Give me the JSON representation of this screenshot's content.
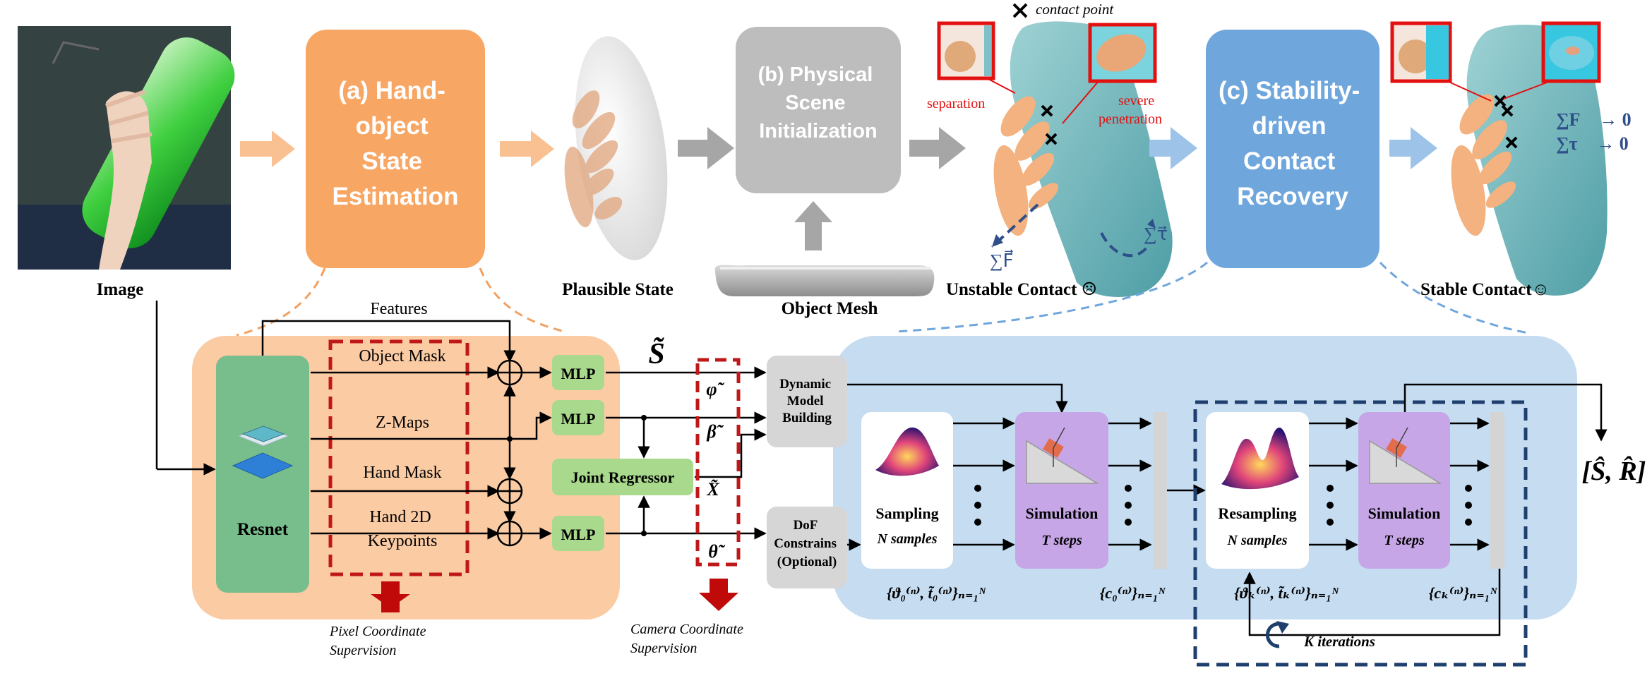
{
  "stage_a": {
    "title": "(a) Hand-object State Estimation",
    "lines": [
      "(a) Hand-",
      "object",
      "State",
      "Estimation"
    ]
  },
  "stage_b": {
    "title": "(b) Physical Scene Initialization",
    "lines": [
      "(b) Physical",
      "Scene",
      "Initialization"
    ]
  },
  "stage_c": {
    "title": "(c) Stability-driven Contact Recovery",
    "lines": [
      "(c) Stability-",
      "driven",
      "Contact",
      "Recovery"
    ]
  },
  "top_captions": {
    "image": "Image",
    "plausible_state": "Plausible State",
    "object_mesh": "Object Mesh",
    "unstable_contact": "Unstable Contact ☹",
    "stable_contact": "Stable Contact☺"
  },
  "annotations": {
    "contact_point": "contact point",
    "separation": "separation",
    "severe_penetration_1": "severe",
    "severe_penetration_2": "penetration",
    "force_sum": "∑F⃗",
    "torque_sum": "∑τ⃗",
    "stable_force": "∑F⃗ → 0",
    "stable_torque": "∑τ⃗ → 0"
  },
  "colors": {
    "orange_stage": "#f8a663",
    "orange_panel": "#fbcba4",
    "gray_stage": "#bdbdbd",
    "blue_stage": "#6fa6dc",
    "blue_panel": "#c6dcf1",
    "mlp_green": "#a8d98c",
    "resnet_green": "#78bd8c",
    "sim_purple": "#c6a6e6",
    "red_dash": "#c01818",
    "navy_dash": "#1f3f6e"
  },
  "panel_a": {
    "features": "Features",
    "object_mask": "Object Mask",
    "z_maps": "Z-Maps",
    "hand_mask": "Hand Mask",
    "hand_2d_keypoints_1": "Hand 2D",
    "hand_2d_keypoints_2": "Keypoints",
    "resnet": "Resnet",
    "mlp": "MLP",
    "joint_regressor": "Joint Regressor",
    "s_tilde": "S̃",
    "phi": "φ̃",
    "beta": "β̃",
    "x_tilde": "X̃",
    "theta": "θ̃",
    "pixel_supervision_1": "Pixel Coordinate",
    "pixel_supervision_2": "Supervision",
    "camera_supervision_1": "Camera Coordinate",
    "camera_supervision_2": "Supervision"
  },
  "middle": {
    "dynamic_1": "Dynamic",
    "dynamic_2": "Model",
    "dynamic_3": "Building",
    "dof_1": "DoF",
    "dof_2": "Constrains",
    "dof_3": "(Optional)"
  },
  "panel_c": {
    "sampling": "Sampling",
    "n_samples": "N samples",
    "simulation": "Simulation",
    "t_steps": "T steps",
    "resampling": "Resampling",
    "init_set": "{ϑ₀⁽ⁿ⁾, t̃₀⁽ⁿ⁾}ₙ₌₁ᴺ",
    "c0_set": "{c₀⁽ⁿ⁾}ₙ₌₁ᴺ",
    "k_set": "{ϑₖ⁽ⁿ⁾, t̃ₖ⁽ⁿ⁾}ₙ₌₁ᴺ",
    "ck_set": "{cₖ⁽ⁿ⁾}ₙ₌₁ᴺ",
    "k_iterations": "K iterations",
    "output": "[Ŝ, R̂]"
  }
}
